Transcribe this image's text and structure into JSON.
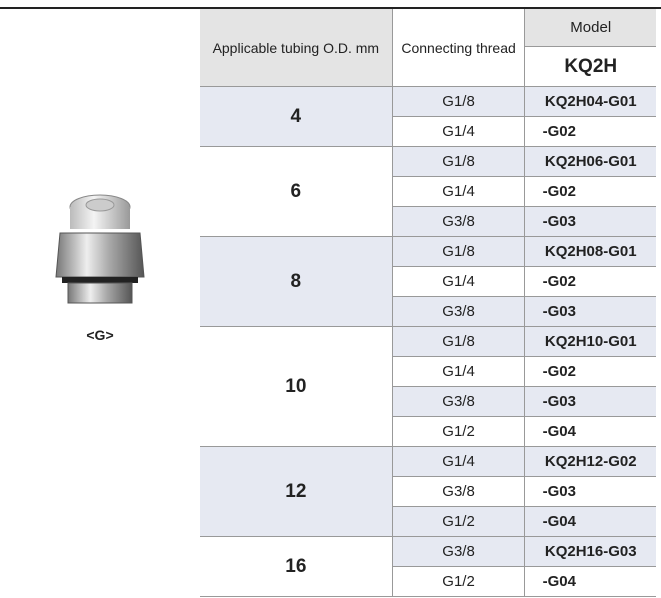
{
  "product": {
    "caption": "<G>"
  },
  "table": {
    "headers": {
      "tubing": "Applicable tubing O.D. mm",
      "thread": "Connecting thread",
      "model": "Model",
      "series": "KQ2H"
    },
    "groups": [
      {
        "tubing": "4",
        "rows": [
          [
            "G1/8",
            "KQ2H04-G01"
          ],
          [
            "G1/4",
            "-G02"
          ]
        ]
      },
      {
        "tubing": "6",
        "rows": [
          [
            "G1/8",
            "KQ2H06-G01"
          ],
          [
            "G1/4",
            "-G02"
          ],
          [
            "G3/8",
            "-G03"
          ]
        ]
      },
      {
        "tubing": "8",
        "rows": [
          [
            "G1/8",
            "KQ2H08-G01"
          ],
          [
            "G1/4",
            "-G02"
          ],
          [
            "G3/8",
            "-G03"
          ]
        ]
      },
      {
        "tubing": "10",
        "rows": [
          [
            "G1/8",
            "KQ2H10-G01"
          ],
          [
            "G1/4",
            "-G02"
          ],
          [
            "G3/8",
            "-G03"
          ],
          [
            "G1/2",
            "-G04"
          ]
        ]
      },
      {
        "tubing": "12",
        "rows": [
          [
            "G1/4",
            "KQ2H12-G02"
          ],
          [
            "G3/8",
            "-G03"
          ],
          [
            "G1/2",
            "-G04"
          ]
        ]
      },
      {
        "tubing": "16",
        "rows": [
          [
            "G3/8",
            "KQ2H16-G03"
          ],
          [
            "G1/2",
            "-G04"
          ]
        ]
      }
    ]
  }
}
